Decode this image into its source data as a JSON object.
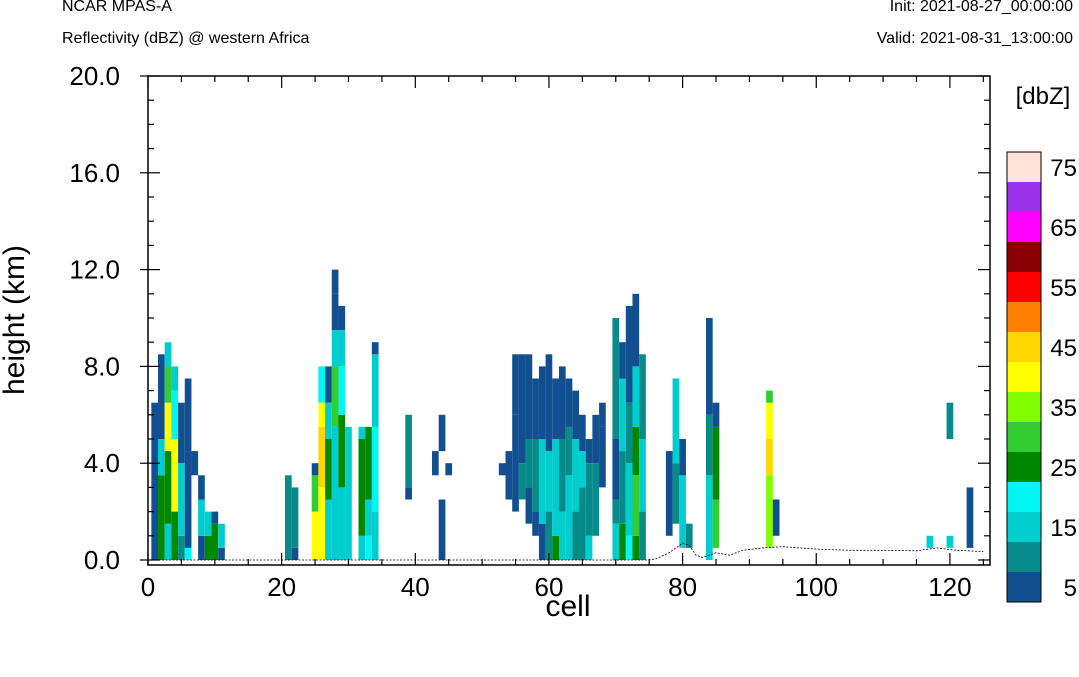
{
  "header": {
    "model": "NCAR MPAS-A",
    "field": "Reflectivity (dBZ) @ western Africa",
    "init": "Init: 2021-08-27_00:00:00",
    "valid": "Valid: 2021-08-31_13:00:00"
  },
  "chart_data": {
    "type": "heatmap",
    "title": "Reflectivity (dBZ) @ western Africa",
    "xlabel": "cell",
    "ylabel": "height (km)",
    "xlim": [
      0,
      126
    ],
    "ylim": [
      0,
      20
    ],
    "x_ticks": [
      "0",
      "20",
      "40",
      "60",
      "80",
      "100",
      "120"
    ],
    "y_ticks": [
      "0.0",
      "4.0",
      "8.0",
      "12.0",
      "16.0",
      "20.0"
    ],
    "colorbar": {
      "label": "[dbZ]",
      "tick_labels": [
        "5",
        "15",
        "25",
        "35",
        "45",
        "55",
        "65",
        "75"
      ],
      "levels": [
        5,
        10,
        15,
        20,
        25,
        30,
        35,
        40,
        45,
        50,
        55,
        60,
        65,
        70,
        75
      ],
      "colors": [
        "#124f91",
        "#078a8a",
        "#00cdcd",
        "#00f5f5",
        "#008800",
        "#33cc33",
        "#7fff00",
        "#ffff00",
        "#ffd700",
        "#ff8000",
        "#ff0000",
        "#8b0000",
        "#ff00ff",
        "#9932e8",
        "#ffe2d8"
      ]
    },
    "cell_height_km": 0.25,
    "columns": [
      {
        "x": 1,
        "segments": [
          [
            0.0,
            6.5,
            5
          ]
        ]
      },
      {
        "x": 2,
        "segments": [
          [
            0.0,
            3.5,
            25
          ],
          [
            3.5,
            5.0,
            15
          ],
          [
            5.0,
            8.5,
            5
          ]
        ]
      },
      {
        "x": 3,
        "segments": [
          [
            0.0,
            1.5,
            15
          ],
          [
            1.5,
            4.5,
            25
          ],
          [
            4.5,
            6.5,
            40
          ],
          [
            6.5,
            8.0,
            30
          ],
          [
            8.0,
            9.0,
            15
          ]
        ]
      },
      {
        "x": 4,
        "segments": [
          [
            0.0,
            2.0,
            25
          ],
          [
            2.0,
            5.0,
            40
          ],
          [
            5.0,
            7.0,
            20
          ],
          [
            7.0,
            8.0,
            15
          ]
        ]
      },
      {
        "x": 5,
        "segments": [
          [
            0.0,
            1.0,
            10
          ],
          [
            1.0,
            4.0,
            15
          ],
          [
            4.0,
            6.5,
            5
          ]
        ]
      },
      {
        "x": 6,
        "segments": [
          [
            0.0,
            0.5,
            20
          ],
          [
            0.5,
            4.5,
            5
          ],
          [
            4.5,
            7.5,
            5
          ]
        ]
      },
      {
        "x": 7,
        "segments": [
          [
            3.5,
            4.5,
            5
          ]
        ]
      },
      {
        "x": 8,
        "segments": [
          [
            0.0,
            1.0,
            5
          ],
          [
            1.0,
            2.5,
            15
          ],
          [
            2.5,
            3.5,
            5
          ]
        ]
      },
      {
        "x": 9,
        "segments": [
          [
            0.0,
            1.0,
            25
          ],
          [
            1.0,
            2.0,
            15
          ]
        ]
      },
      {
        "x": 10,
        "segments": [
          [
            0.0,
            1.5,
            25
          ],
          [
            1.5,
            2.0,
            5
          ]
        ]
      },
      {
        "x": 11,
        "segments": [
          [
            0.0,
            0.5,
            5
          ],
          [
            0.5,
            1.5,
            15
          ]
        ]
      },
      {
        "x": 21,
        "segments": [
          [
            0.0,
            3.5,
            10
          ]
        ]
      },
      {
        "x": 22,
        "segments": [
          [
            0.0,
            0.5,
            5
          ],
          [
            0.5,
            3.0,
            10
          ]
        ]
      },
      {
        "x": 25,
        "segments": [
          [
            0.0,
            2.0,
            40
          ],
          [
            2.0,
            3.5,
            30
          ],
          [
            3.5,
            4.0,
            5
          ]
        ]
      },
      {
        "x": 26,
        "segments": [
          [
            0.0,
            3.0,
            40
          ],
          [
            3.0,
            5.5,
            45
          ],
          [
            5.5,
            6.5,
            40
          ],
          [
            6.5,
            8.0,
            20
          ]
        ]
      },
      {
        "x": 27,
        "segments": [
          [
            0.0,
            2.5,
            15
          ],
          [
            2.5,
            5.0,
            25
          ],
          [
            5.0,
            6.5,
            15
          ],
          [
            6.5,
            8.0,
            5
          ]
        ]
      },
      {
        "x": 28,
        "segments": [
          [
            0.0,
            5.5,
            15
          ],
          [
            5.5,
            8.0,
            30
          ],
          [
            8.0,
            9.5,
            15
          ],
          [
            9.5,
            11.0,
            5
          ],
          [
            11.0,
            12.0,
            5
          ]
        ]
      },
      {
        "x": 29,
        "segments": [
          [
            0.0,
            3.0,
            15
          ],
          [
            3.0,
            6.0,
            25
          ],
          [
            6.0,
            8.0,
            20
          ],
          [
            8.0,
            9.5,
            15
          ],
          [
            9.5,
            10.5,
            5
          ]
        ]
      },
      {
        "x": 30,
        "segments": [
          [
            0.0,
            5.5,
            15
          ]
        ]
      },
      {
        "x": 32,
        "segments": [
          [
            0.0,
            1.0,
            15
          ],
          [
            1.0,
            5.0,
            25
          ],
          [
            5.0,
            5.5,
            15
          ]
        ]
      },
      {
        "x": 33,
        "segments": [
          [
            0.0,
            1.0,
            20
          ],
          [
            1.0,
            2.5,
            15
          ],
          [
            2.5,
            5.5,
            25
          ]
        ]
      },
      {
        "x": 34,
        "segments": [
          [
            0.0,
            2.0,
            15
          ],
          [
            2.0,
            5.5,
            20
          ],
          [
            5.5,
            8.5,
            15
          ],
          [
            8.5,
            9.0,
            5
          ]
        ]
      },
      {
        "x": 39,
        "segments": [
          [
            2.5,
            3.0,
            5
          ],
          [
            3.0,
            6.0,
            10
          ]
        ]
      },
      {
        "x": 43,
        "segments": [
          [
            3.5,
            4.5,
            5
          ]
        ]
      },
      {
        "x": 44,
        "segments": [
          [
            0.0,
            2.5,
            5
          ],
          [
            4.5,
            6.0,
            5
          ]
        ]
      },
      {
        "x": 45,
        "segments": [
          [
            3.5,
            4.0,
            5
          ]
        ]
      },
      {
        "x": 53,
        "segments": [
          [
            3.5,
            4.0,
            5
          ]
        ]
      },
      {
        "x": 54,
        "segments": [
          [
            2.5,
            4.5,
            5
          ]
        ]
      },
      {
        "x": 55,
        "segments": [
          [
            2.0,
            6.0,
            5
          ],
          [
            6.0,
            8.5,
            5
          ]
        ]
      },
      {
        "x": 56,
        "segments": [
          [
            2.5,
            4.0,
            10
          ],
          [
            4.0,
            8.5,
            5
          ]
        ]
      },
      {
        "x": 57,
        "segments": [
          [
            1.5,
            3.0,
            5
          ],
          [
            3.0,
            5.0,
            10
          ],
          [
            5.0,
            8.5,
            5
          ]
        ]
      },
      {
        "x": 58,
        "segments": [
          [
            1.0,
            2.0,
            5
          ],
          [
            2.0,
            5.0,
            10
          ],
          [
            5.0,
            7.5,
            5
          ]
        ]
      },
      {
        "x": 59,
        "segments": [
          [
            0.0,
            1.5,
            5
          ],
          [
            1.5,
            5.0,
            15
          ],
          [
            5.0,
            8.0,
            5
          ]
        ]
      },
      {
        "x": 60,
        "segments": [
          [
            0.0,
            2.0,
            10
          ],
          [
            2.0,
            4.5,
            15
          ],
          [
            4.5,
            8.5,
            5
          ]
        ]
      },
      {
        "x": 61,
        "segments": [
          [
            0.0,
            1.0,
            25
          ],
          [
            1.0,
            5.0,
            15
          ],
          [
            5.0,
            7.5,
            5
          ]
        ]
      },
      {
        "x": 62,
        "segments": [
          [
            0.0,
            2.0,
            15
          ],
          [
            2.0,
            5.0,
            10
          ],
          [
            5.0,
            8.0,
            5
          ]
        ]
      },
      {
        "x": 63,
        "segments": [
          [
            0.0,
            3.5,
            15
          ],
          [
            3.5,
            5.5,
            10
          ],
          [
            5.5,
            7.5,
            5
          ]
        ]
      },
      {
        "x": 64,
        "segments": [
          [
            0.0,
            2.0,
            10
          ],
          [
            2.0,
            5.0,
            15
          ],
          [
            5.0,
            7.0,
            5
          ]
        ]
      },
      {
        "x": 65,
        "segments": [
          [
            0.0,
            3.0,
            10
          ],
          [
            3.0,
            4.5,
            15
          ],
          [
            4.5,
            6.0,
            5
          ]
        ]
      },
      {
        "x": 66,
        "segments": [
          [
            0.0,
            1.0,
            15
          ],
          [
            1.0,
            4.0,
            10
          ],
          [
            4.0,
            5.0,
            5
          ]
        ]
      },
      {
        "x": 67,
        "segments": [
          [
            1.0,
            4.0,
            10
          ],
          [
            4.0,
            6.0,
            5
          ]
        ]
      },
      {
        "x": 68,
        "segments": [
          [
            3.0,
            5.5,
            5
          ],
          [
            5.5,
            6.5,
            5
          ]
        ]
      },
      {
        "x": 70,
        "segments": [
          [
            0.0,
            1.5,
            15
          ],
          [
            1.5,
            2.5,
            10
          ],
          [
            2.5,
            5.0,
            5
          ],
          [
            5.0,
            10.0,
            10
          ]
        ]
      },
      {
        "x": 71,
        "segments": [
          [
            0.0,
            1.5,
            25
          ],
          [
            1.5,
            4.5,
            10
          ],
          [
            4.5,
            7.5,
            15
          ],
          [
            7.5,
            9.0,
            5
          ]
        ]
      },
      {
        "x": 72,
        "segments": [
          [
            0.0,
            1.0,
            20
          ],
          [
            1.0,
            4.0,
            15
          ],
          [
            4.0,
            6.5,
            10
          ],
          [
            6.5,
            10.5,
            5
          ]
        ]
      },
      {
        "x": 73,
        "segments": [
          [
            0.0,
            1.0,
            25
          ],
          [
            1.0,
            3.5,
            30
          ],
          [
            3.5,
            5.5,
            25
          ],
          [
            5.5,
            8.0,
            15
          ],
          [
            8.0,
            11.0,
            5
          ]
        ]
      },
      {
        "x": 74,
        "segments": [
          [
            0.0,
            2.0,
            10
          ],
          [
            2.0,
            5.0,
            15
          ],
          [
            5.0,
            8.5,
            10
          ]
        ]
      },
      {
        "x": 78,
        "segments": [
          [
            1.0,
            4.5,
            5
          ]
        ]
      },
      {
        "x": 79,
        "segments": [
          [
            1.5,
            4.0,
            10
          ],
          [
            4.0,
            7.5,
            15
          ]
        ]
      },
      {
        "x": 80,
        "segments": [
          [
            0.5,
            3.5,
            15
          ],
          [
            3.5,
            5.0,
            5
          ]
        ]
      },
      {
        "x": 81,
        "segments": [
          [
            0.5,
            1.5,
            10
          ]
        ]
      },
      {
        "x": 84,
        "segments": [
          [
            0.0,
            3.5,
            15
          ],
          [
            3.5,
            6.0,
            10
          ],
          [
            6.0,
            10.0,
            5
          ]
        ]
      },
      {
        "x": 85,
        "segments": [
          [
            0.5,
            2.5,
            30
          ],
          [
            2.5,
            5.5,
            25
          ],
          [
            5.5,
            6.5,
            5
          ]
        ]
      },
      {
        "x": 93,
        "segments": [
          [
            0.5,
            3.5,
            35
          ],
          [
            3.5,
            5.0,
            45
          ],
          [
            5.0,
            6.5,
            40
          ],
          [
            6.5,
            7.0,
            30
          ]
        ]
      },
      {
        "x": 94,
        "segments": [
          [
            1.0,
            2.5,
            5
          ]
        ]
      },
      {
        "x": 117,
        "segments": [
          [
            0.5,
            1.0,
            15
          ]
        ]
      },
      {
        "x": 120,
        "segments": [
          [
            0.5,
            1.0,
            15
          ],
          [
            5.0,
            6.5,
            10
          ]
        ]
      },
      {
        "x": 123,
        "segments": [
          [
            0.5,
            3.0,
            5
          ]
        ]
      }
    ],
    "terrain": [
      [
        0,
        0.0
      ],
      [
        75,
        0.0
      ],
      [
        76,
        0.05
      ],
      [
        78,
        0.3
      ],
      [
        80,
        0.7
      ],
      [
        81,
        0.6
      ],
      [
        82,
        0.2
      ],
      [
        83,
        0.1
      ],
      [
        85,
        0.3
      ],
      [
        87,
        0.2
      ],
      [
        89,
        0.4
      ],
      [
        92,
        0.5
      ],
      [
        95,
        0.55
      ],
      [
        100,
        0.45
      ],
      [
        105,
        0.4
      ],
      [
        110,
        0.4
      ],
      [
        115,
        0.38
      ],
      [
        118,
        0.5
      ],
      [
        121,
        0.4
      ],
      [
        125,
        0.35
      ]
    ]
  }
}
